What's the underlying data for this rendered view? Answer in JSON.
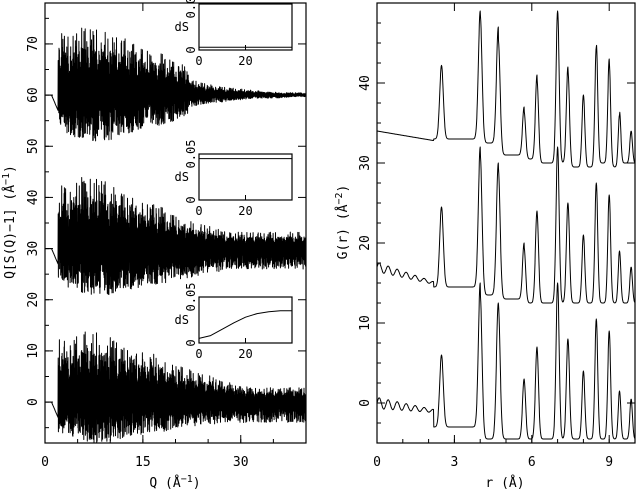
{
  "chart_data": [
    {
      "type": "line",
      "xlabel": "Q (Å",
      "xlabel_sup": "−1",
      "xlabel_end": ")",
      "ylabel": "Q[S(Q)−1] (Å",
      "ylabel_sup": "−1",
      "ylabel_end": ")",
      "xlim": [
        0,
        40
      ],
      "ylim": [
        -8,
        78
      ],
      "x_ticks": [
        0,
        15,
        30
      ],
      "y_ticks": [
        0,
        10,
        20,
        30,
        40,
        50,
        60,
        70
      ],
      "x_tick_labels": [
        "0",
        "15",
        "30"
      ],
      "y_tick_labels": [
        "0",
        "10",
        "20",
        "30",
        "40",
        "50",
        "60",
        "70"
      ],
      "grid": false,
      "series": [
        {
          "offset": 60,
          "x": [
            0,
            1,
            2,
            4,
            6,
            8,
            10,
            12,
            14,
            16,
            18,
            20,
            22,
            24,
            26,
            28,
            30,
            32,
            34,
            36,
            38,
            40
          ],
          "envelope_upper": [
            60,
            62,
            76,
            74,
            77,
            76,
            75,
            74,
            72,
            71,
            70,
            68,
            67,
            65,
            64,
            63,
            62.5,
            62,
            61.5,
            61,
            61,
            61
          ],
          "envelope_lower": [
            60,
            57,
            54,
            52,
            51,
            51,
            51,
            52,
            53,
            54,
            54,
            55,
            56,
            57,
            57.5,
            58,
            58.5,
            59,
            59,
            59,
            59.5,
            59.5
          ],
          "baseline_start": [
            60,
            57
          ],
          "noise": "low"
        },
        {
          "offset": 30,
          "x": [
            0,
            1,
            2,
            4,
            6,
            8,
            10,
            12,
            14,
            16,
            18,
            20,
            22,
            24,
            26,
            28,
            30,
            32,
            34,
            36,
            38,
            40
          ],
          "envelope_upper": [
            30,
            32,
            46,
            45,
            48,
            47,
            46,
            44,
            42,
            41,
            40,
            38,
            37,
            36,
            35,
            34,
            34,
            34,
            34,
            34,
            34,
            34
          ],
          "envelope_lower": [
            30,
            27,
            24,
            22,
            21,
            21,
            21,
            22,
            22,
            23,
            23,
            24,
            24,
            25,
            25,
            26,
            26,
            26,
            26,
            26,
            26,
            26
          ],
          "baseline_start": [
            30,
            27
          ],
          "noise": "high"
        },
        {
          "offset": 0,
          "x": [
            0,
            1,
            2,
            4,
            6,
            8,
            10,
            12,
            14,
            16,
            18,
            20,
            22,
            24,
            26,
            28,
            30,
            32,
            34,
            36,
            38,
            40
          ],
          "envelope_upper": [
            0,
            2,
            16,
            15,
            18,
            17,
            16,
            14,
            13,
            12,
            11,
            9,
            8,
            7,
            6,
            5,
            4,
            3.5,
            3.5,
            3.5,
            3.5,
            3.5
          ],
          "envelope_lower": [
            0,
            -3,
            -6,
            -7,
            -8,
            -8,
            -8,
            -7,
            -7,
            -6,
            -6,
            -5,
            -5,
            -4.5,
            -4.5,
            -4,
            -4,
            -4,
            -4,
            -4,
            -4,
            -4
          ],
          "baseline_start": [
            0,
            -3
          ],
          "noise": "high"
        }
      ],
      "insets": [
        {
          "ylabel": "dS",
          "xlim": [
            0,
            40
          ],
          "ylim": [
            0,
            0.05
          ],
          "x_ticks": [
            0,
            20
          ],
          "y_ticks": [
            0,
            0.05
          ],
          "x_tick_labels": [
            "0",
            "20"
          ],
          "y_tick_labels": [
            "0",
            "0.05"
          ],
          "curve_x": [
            0,
            10,
            20,
            30,
            40
          ],
          "curve_y": [
            0.003,
            0.003,
            0.003,
            0.003,
            0.003
          ]
        },
        {
          "ylabel": "dS",
          "xlim": [
            0,
            40
          ],
          "ylim": [
            0,
            0.05
          ],
          "x_ticks": [
            0,
            20
          ],
          "y_ticks": [
            0,
            0.05
          ],
          "x_tick_labels": [
            "0",
            "20"
          ],
          "y_tick_labels": [
            "0",
            "0.05"
          ],
          "curve_x": [
            0,
            10,
            20,
            30,
            40
          ],
          "curve_y": [
            0.045,
            0.045,
            0.045,
            0.045,
            0.045
          ]
        },
        {
          "ylabel": "dS",
          "xlim": [
            0,
            40
          ],
          "ylim": [
            0,
            0.05
          ],
          "x_ticks": [
            0,
            20
          ],
          "y_ticks": [
            0,
            0.05
          ],
          "x_tick_labels": [
            "0",
            "20"
          ],
          "y_tick_labels": [
            "0",
            "0.05"
          ],
          "curve_x": [
            0,
            5,
            10,
            15,
            20,
            25,
            30,
            35,
            40
          ],
          "curve_y": [
            0.005,
            0.008,
            0.015,
            0.022,
            0.028,
            0.032,
            0.034,
            0.035,
            0.035
          ]
        }
      ]
    },
    {
      "type": "line",
      "xlabel": "r (Å)",
      "ylabel": "G(r) (Å",
      "ylabel_sup": "−2",
      "ylabel_end": ")",
      "xlim": [
        0,
        10
      ],
      "ylim": [
        -5,
        50
      ],
      "x_ticks": [
        0,
        3,
        6,
        9
      ],
      "y_ticks": [
        0,
        10,
        20,
        30,
        40
      ],
      "x_tick_labels": [
        "0",
        "3",
        "6",
        "9"
      ],
      "y_tick_labels": [
        "0",
        "10",
        "20",
        "30",
        "40"
      ],
      "grid": false,
      "peaks_r": [
        2.5,
        4.0,
        4.7,
        5.7,
        6.2,
        7.0,
        7.4,
        8.0,
        8.5,
        9.0,
        9.4,
        9.85
      ],
      "peak_widths_r": [
        0.07,
        0.07,
        0.07,
        0.06,
        0.06,
        0.06,
        0.06,
        0.055,
        0.055,
        0.055,
        0.05,
        0.05
      ],
      "series": [
        {
          "offset": 34,
          "baseline_start": 34,
          "baseline_before_peak": 32.8,
          "peak_heights": [
            42,
            49,
            47,
            37,
            41,
            49,
            42,
            38.5,
            44.5,
            43,
            36,
            34
          ],
          "valleys": [
            33,
            32.5,
            31,
            30.5,
            30,
            30,
            29.5,
            29.5,
            30,
            29.5,
            30
          ],
          "ripple": 0
        },
        {
          "offset": 16,
          "baseline_start": 17,
          "baseline_before_peak": 15,
          "peak_heights": [
            25,
            32,
            30,
            20,
            24,
            32,
            25,
            21,
            27.5,
            26,
            19,
            17
          ],
          "valleys": [
            14.5,
            13.5,
            13,
            12.5,
            12.5,
            12.5,
            12.5,
            12.5,
            12.5,
            12.5,
            12.5
          ],
          "ripple": 0.6
        },
        {
          "offset": 0,
          "baseline_start": 0,
          "baseline_before_peak": -1,
          "peak_heights": [
            8,
            15,
            12.5,
            3,
            7,
            15,
            8,
            4,
            10.5,
            9,
            1.5,
            0.5
          ],
          "valleys": [
            -3,
            -4.5,
            -4.5,
            -4.5,
            -4.5,
            -4.5,
            -4.5,
            -4.5,
            -4.5,
            -4.5,
            -4.5
          ],
          "ripple": 0.7
        }
      ]
    }
  ]
}
